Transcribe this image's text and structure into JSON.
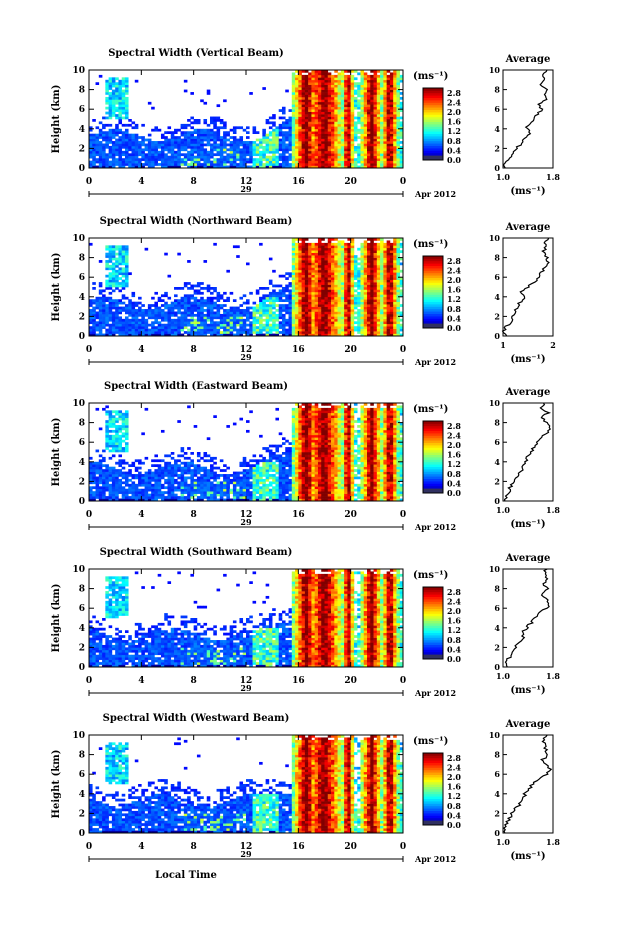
{
  "xaxis_label": "Local Time",
  "date_label": "Apr 2012",
  "day_label": "29",
  "colorbar_unit": "(ms⁻¹)",
  "colorbar_ticks": [
    "2.8",
    "2.4",
    "2.0",
    "1.6",
    "1.2",
    "0.8",
    "0.4",
    "0.0"
  ],
  "average_title": "Average",
  "average_unit": "(ms⁻¹)",
  "chart_data": [
    {
      "type": "heatmap",
      "title": "Spectral Width (Vertical Beam)",
      "ylabel": "Height (km)",
      "xlabel": "",
      "xlim": [
        0,
        24
      ],
      "ylim": [
        0,
        10
      ],
      "x_ticks": [
        "0",
        "4",
        "8",
        "12",
        "16",
        "20",
        "0"
      ],
      "y_ticks": [
        "0",
        "2",
        "4",
        "6",
        "8",
        "10"
      ],
      "colorbar": {
        "label": "(ms⁻¹)",
        "range": [
          0.0,
          3.0
        ],
        "ticks": [
          2.8,
          2.4,
          2.0,
          1.6,
          1.2,
          0.8,
          0.4,
          0.0
        ]
      },
      "profile": {
        "title": "Average",
        "xlabel": "(ms⁻¹)",
        "xlim": [
          1.0,
          1.8
        ],
        "x_ticks": [
          "1.0",
          "1.8"
        ],
        "ylim": [
          0,
          10
        ],
        "y_ticks": [
          "0",
          "2",
          "4",
          "6",
          "8",
          "10"
        ],
        "height": [
          0,
          0.5,
          1,
          1.5,
          2,
          2.5,
          3,
          3.5,
          4,
          4.5,
          5,
          5.5,
          6,
          6.5,
          7,
          7.5,
          8,
          8.5,
          9,
          9.5,
          10
        ],
        "value": [
          1.05,
          1.02,
          1.1,
          1.15,
          1.2,
          1.3,
          1.35,
          1.45,
          1.38,
          1.42,
          1.5,
          1.56,
          1.62,
          1.58,
          1.7,
          1.65,
          1.72,
          1.6,
          1.68,
          1.62,
          1.7
        ]
      }
    },
    {
      "type": "heatmap",
      "title": "Spectral Width (Northward Beam)",
      "ylabel": "Height (km)",
      "xlabel": "",
      "xlim": [
        0,
        24
      ],
      "ylim": [
        0,
        10
      ],
      "x_ticks": [
        "0",
        "4",
        "8",
        "12",
        "16",
        "20",
        "0"
      ],
      "y_ticks": [
        "0",
        "2",
        "4",
        "6",
        "8",
        "10"
      ],
      "colorbar": {
        "label": "(ms⁻¹)",
        "range": [
          0.0,
          3.0
        ],
        "ticks": [
          2.8,
          2.4,
          2.0,
          1.6,
          1.2,
          0.8,
          0.4,
          0.0
        ]
      },
      "profile": {
        "title": "Average",
        "xlabel": "(ms⁻¹)",
        "xlim": [
          1,
          2
        ],
        "x_ticks": [
          "1",
          "2"
        ],
        "ylim": [
          0,
          10
        ],
        "y_ticks": [
          "0",
          "2",
          "4",
          "6",
          "8",
          "10"
        ],
        "height": [
          0,
          0.5,
          1,
          1.5,
          2,
          2.5,
          3,
          3.5,
          4,
          4.5,
          5,
          5.5,
          6,
          6.5,
          7,
          7.5,
          8,
          8.5,
          9,
          9.5,
          10
        ],
        "value": [
          1.05,
          1.03,
          1.08,
          1.15,
          1.2,
          1.25,
          1.3,
          1.35,
          1.42,
          1.38,
          1.5,
          1.62,
          1.7,
          1.78,
          1.85,
          1.9,
          1.88,
          1.8,
          1.86,
          1.82,
          1.9
        ]
      }
    },
    {
      "type": "heatmap",
      "title": "Spectral Width (Eastward Beam)",
      "ylabel": "Height (km)",
      "xlabel": "",
      "xlim": [
        0,
        24
      ],
      "ylim": [
        0,
        10
      ],
      "x_ticks": [
        "0",
        "4",
        "8",
        "12",
        "16",
        "20",
        "0"
      ],
      "y_ticks": [
        "0",
        "2",
        "4",
        "6",
        "8",
        "10"
      ],
      "colorbar": {
        "label": "(ms⁻¹)",
        "range": [
          0.0,
          3.0
        ],
        "ticks": [
          2.8,
          2.4,
          2.0,
          1.6,
          1.2,
          0.8,
          0.4,
          0.0
        ]
      },
      "profile": {
        "title": "Average",
        "xlabel": "(ms⁻¹)",
        "xlim": [
          1.0,
          1.8
        ],
        "x_ticks": [
          "1.0",
          "1.8"
        ],
        "ylim": [
          0,
          10
        ],
        "y_ticks": [
          "0",
          "2",
          "4",
          "6",
          "8",
          "10"
        ],
        "height": [
          0,
          0.5,
          1,
          1.5,
          2,
          2.5,
          3,
          3.5,
          4,
          4.5,
          5,
          5.5,
          6,
          6.5,
          7,
          7.5,
          8,
          8.5,
          9,
          9.5,
          10
        ],
        "value": [
          1.04,
          1.05,
          1.1,
          1.12,
          1.18,
          1.22,
          1.3,
          1.28,
          1.35,
          1.4,
          1.45,
          1.5,
          1.55,
          1.62,
          1.7,
          1.74,
          1.68,
          1.62,
          1.72,
          1.6,
          1.66
        ]
      }
    },
    {
      "type": "heatmap",
      "title": "Spectral Width (Southward Beam)",
      "ylabel": "Height (km)",
      "xlabel": "",
      "xlim": [
        0,
        24
      ],
      "ylim": [
        0,
        10
      ],
      "x_ticks": [
        "0",
        "4",
        "8",
        "12",
        "16",
        "20",
        "0"
      ],
      "y_ticks": [
        "0",
        "2",
        "4",
        "6",
        "8",
        "10"
      ],
      "colorbar": {
        "label": "(ms⁻¹)",
        "range": [
          0.0,
          3.0
        ],
        "ticks": [
          2.8,
          2.4,
          2.0,
          1.6,
          1.2,
          0.8,
          0.4,
          0.0
        ]
      },
      "profile": {
        "title": "Average",
        "xlabel": "(ms⁻¹)",
        "xlim": [
          1.0,
          1.8
        ],
        "x_ticks": [
          "1.0",
          "1.8"
        ],
        "ylim": [
          0,
          10
        ],
        "y_ticks": [
          "0",
          "2",
          "4",
          "6",
          "8",
          "10"
        ],
        "height": [
          0,
          0.5,
          1,
          1.5,
          2,
          2.5,
          3,
          3.5,
          4,
          4.5,
          5,
          5.5,
          6,
          6.5,
          7,
          7.5,
          8,
          8.5,
          9,
          9.5,
          10
        ],
        "value": [
          1.05,
          1.03,
          1.1,
          1.14,
          1.2,
          1.25,
          1.32,
          1.3,
          1.38,
          1.45,
          1.5,
          1.55,
          1.7,
          1.75,
          1.68,
          1.62,
          1.7,
          1.65,
          1.72,
          1.66,
          1.7
        ]
      }
    },
    {
      "type": "heatmap",
      "title": "Spectral Width (Westward Beam)",
      "ylabel": "Height (km)",
      "xlabel": "Local Time",
      "xlim": [
        0,
        24
      ],
      "ylim": [
        0,
        10
      ],
      "x_ticks": [
        "0",
        "4",
        "8",
        "12",
        "16",
        "20",
        "0"
      ],
      "y_ticks": [
        "0",
        "2",
        "4",
        "6",
        "8",
        "10"
      ],
      "colorbar": {
        "label": "(ms⁻¹)",
        "range": [
          0.0,
          3.0
        ],
        "ticks": [
          2.8,
          2.4,
          2.0,
          1.6,
          1.2,
          0.8,
          0.4,
          0.0
        ]
      },
      "profile": {
        "title": "Average",
        "xlabel": "(ms⁻¹)",
        "xlim": [
          1.0,
          1.8
        ],
        "x_ticks": [
          "1.0",
          "1.8"
        ],
        "ylim": [
          0,
          10
        ],
        "y_ticks": [
          "0",
          "2",
          "4",
          "6",
          "8",
          "10"
        ],
        "height": [
          0,
          0.5,
          1,
          1.5,
          2,
          2.5,
          3,
          3.5,
          4,
          4.5,
          5,
          5.5,
          6,
          6.5,
          7,
          7.5,
          8,
          8.5,
          9,
          9.5,
          10
        ],
        "value": [
          1.04,
          1.02,
          1.06,
          1.1,
          1.15,
          1.2,
          1.28,
          1.32,
          1.35,
          1.42,
          1.48,
          1.55,
          1.7,
          1.76,
          1.7,
          1.64,
          1.72,
          1.68,
          1.7,
          1.64,
          1.68
        ]
      }
    }
  ]
}
